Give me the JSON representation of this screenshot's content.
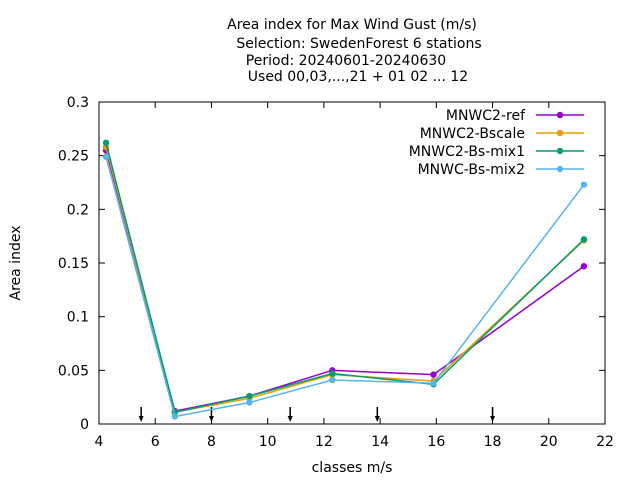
{
  "chart_data": {
    "type": "line",
    "title_lines": [
      "Area index  for Max Wind Gust (m/s)",
      "Selection: SwedenForest       6 stations",
      "Period: 20240601-20240630",
      "Used 00,03,...,21 + 01 02 ... 12"
    ],
    "xlabel": "classes m/s",
    "ylabel": "Area index",
    "xlim": [
      4,
      22
    ],
    "ylim": [
      0,
      0.3
    ],
    "x_ticks": [
      "4",
      "6",
      "8",
      "10",
      "12",
      "14",
      "16",
      "18",
      "20",
      "22"
    ],
    "y_ticks": [
      "0",
      "0.05",
      "0.1",
      "0.15",
      "0.2",
      "0.25",
      "0.3"
    ],
    "x_tick_values": [
      4,
      6,
      8,
      10,
      12,
      14,
      16,
      18,
      20,
      22
    ],
    "y_tick_values": [
      0,
      0.05,
      0.1,
      0.15,
      0.2,
      0.25,
      0.3
    ],
    "grid": false,
    "legend_position": "top-right",
    "arrow_markers_x": [
      5.5,
      8.0,
      10.8,
      13.9,
      18.0
    ],
    "x": [
      4.25,
      6.7,
      9.35,
      12.3,
      15.9,
      21.25
    ],
    "series": [
      {
        "name": "MNWC2-ref",
        "color": "#9400d3",
        "values": [
          0.255,
          0.012,
          0.026,
          0.05,
          0.046,
          0.147
        ]
      },
      {
        "name": "MNWC2-Bscale",
        "color": "#e69f00",
        "values": [
          0.258,
          0.011,
          0.024,
          0.046,
          0.04,
          0.171
        ]
      },
      {
        "name": "MNWC2-Bs-mix1",
        "color": "#009e73",
        "values": [
          0.262,
          0.011,
          0.026,
          0.047,
          0.037,
          0.172
        ]
      },
      {
        "name": "MNWC-Bs-mix2",
        "color": "#56b4e9",
        "values": [
          0.249,
          0.007,
          0.02,
          0.041,
          0.038,
          0.223
        ]
      }
    ]
  }
}
